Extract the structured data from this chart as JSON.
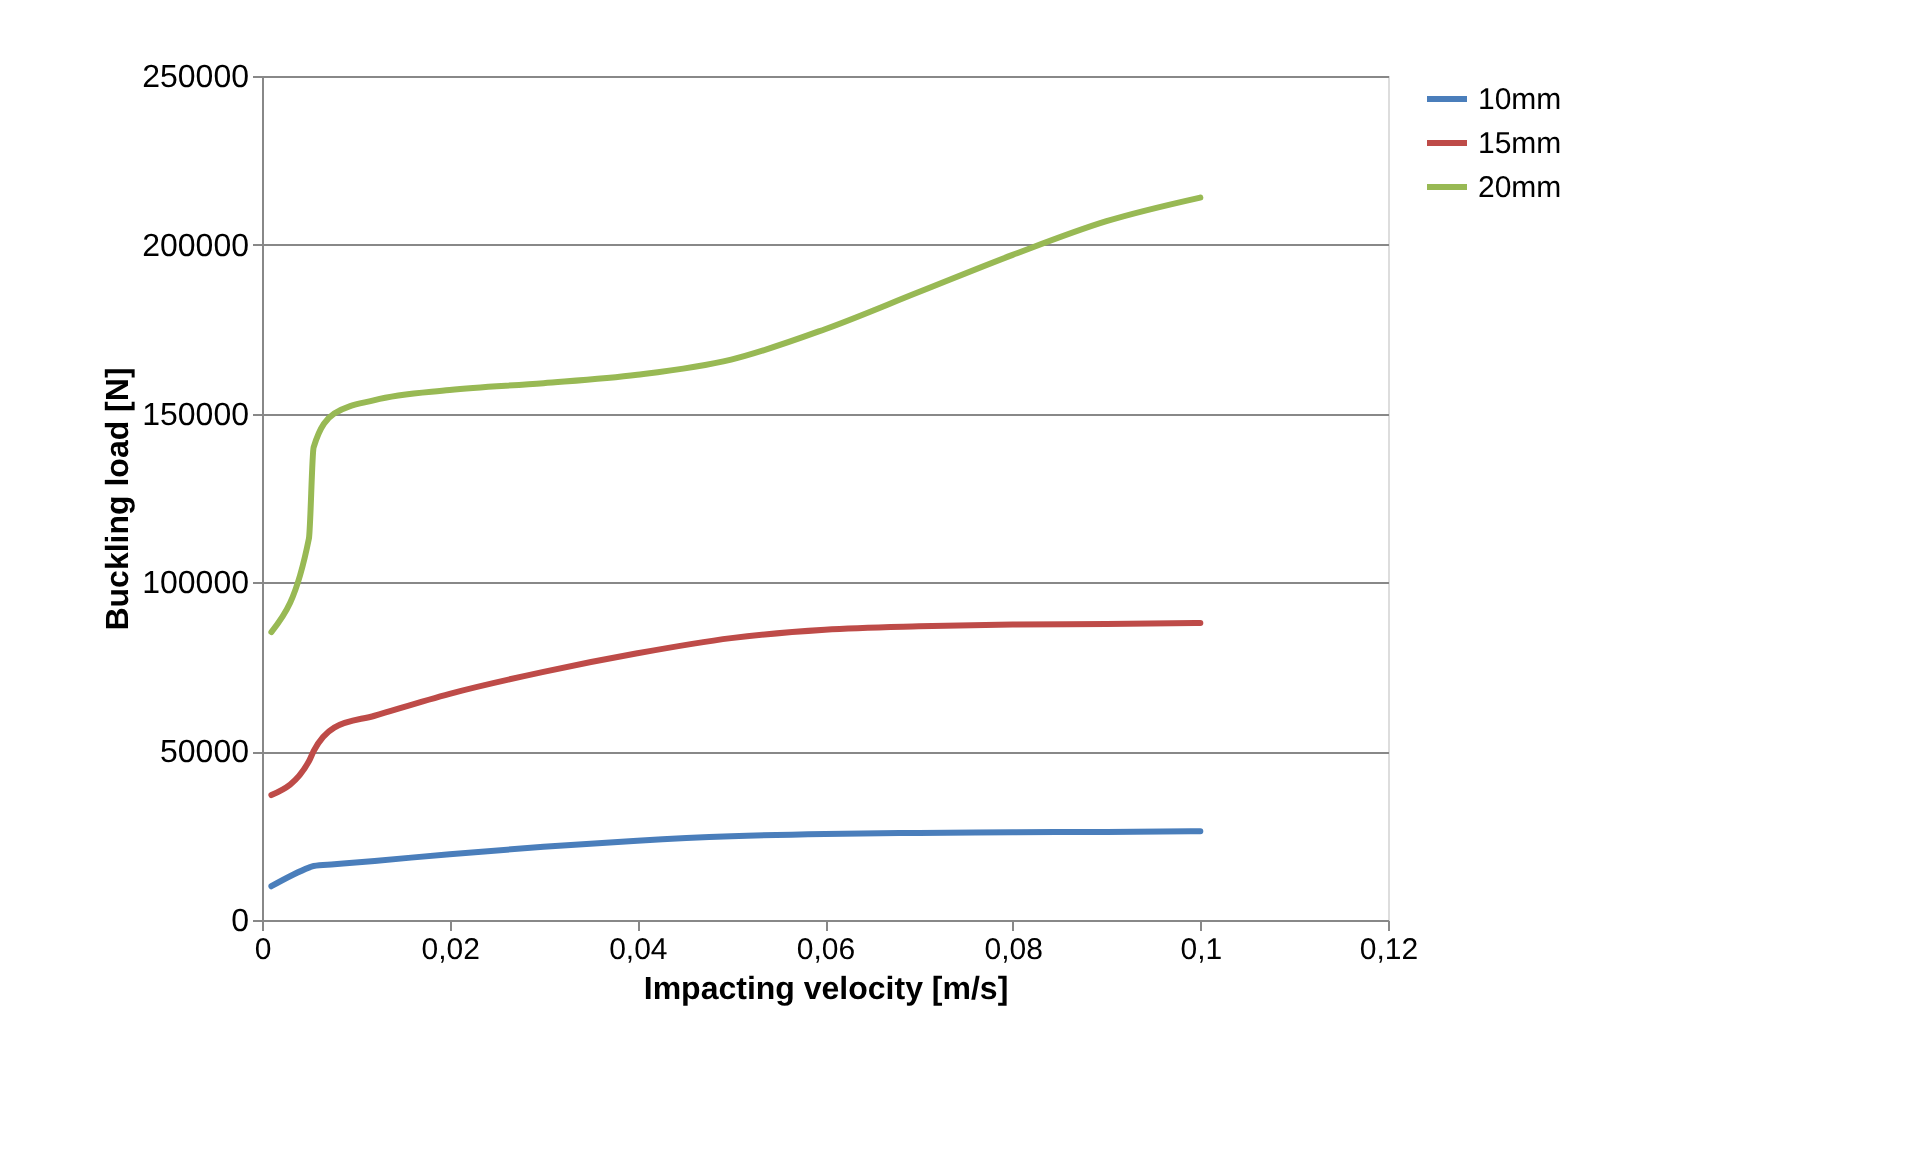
{
  "chart_data": {
    "type": "line",
    "xlabel": "Impacting velocity [m/s]",
    "ylabel": "Buckling load [N]",
    "xlim": [
      0,
      0.12
    ],
    "xticks": [
      0,
      {
        "value": 0.02,
        "label": "0,02"
      },
      {
        "value": 0.04,
        "label": "0,04"
      },
      {
        "value": 0.06,
        "label": "0,06"
      },
      {
        "value": 0.08,
        "label": "0,08"
      },
      {
        "value": 0.1,
        "label": "0,1"
      },
      {
        "value": 0.12,
        "label": "0,12"
      }
    ],
    "ylim": [
      0,
      250000
    ],
    "yticks": [
      0,
      50000,
      100000,
      150000,
      200000,
      250000
    ],
    "grid": "y",
    "legend": "right",
    "marker": "none",
    "line_style": "solid",
    "x": [
      0.001,
      0.005,
      0.0055,
      0.0077,
      0.012,
      0.02,
      0.03,
      0.04,
      0.05,
      0.06,
      0.07,
      0.08,
      0.09,
      0.1
    ],
    "series": [
      {
        "name": "10mm",
        "color": "#4a7ebb",
        "values": [
          10000,
          15500,
          16000,
          16500,
          17500,
          19500,
          21700,
          23500,
          24800,
          25500,
          25800,
          26000,
          26100,
          26300
        ]
      },
      {
        "name": "15mm",
        "color": "#be4b48",
        "values": [
          37000,
          47000,
          50000,
          57000,
          60500,
          67000,
          73500,
          79000,
          83500,
          86000,
          87000,
          87500,
          87700,
          88000
        ]
      },
      {
        "name": "20mm",
        "color": "#98b954",
        "values": [
          85300,
          113000,
          140000,
          150000,
          154000,
          157000,
          159000,
          161500,
          166000,
          175000,
          186000,
          197000,
          207000,
          214000
        ]
      }
    ]
  }
}
